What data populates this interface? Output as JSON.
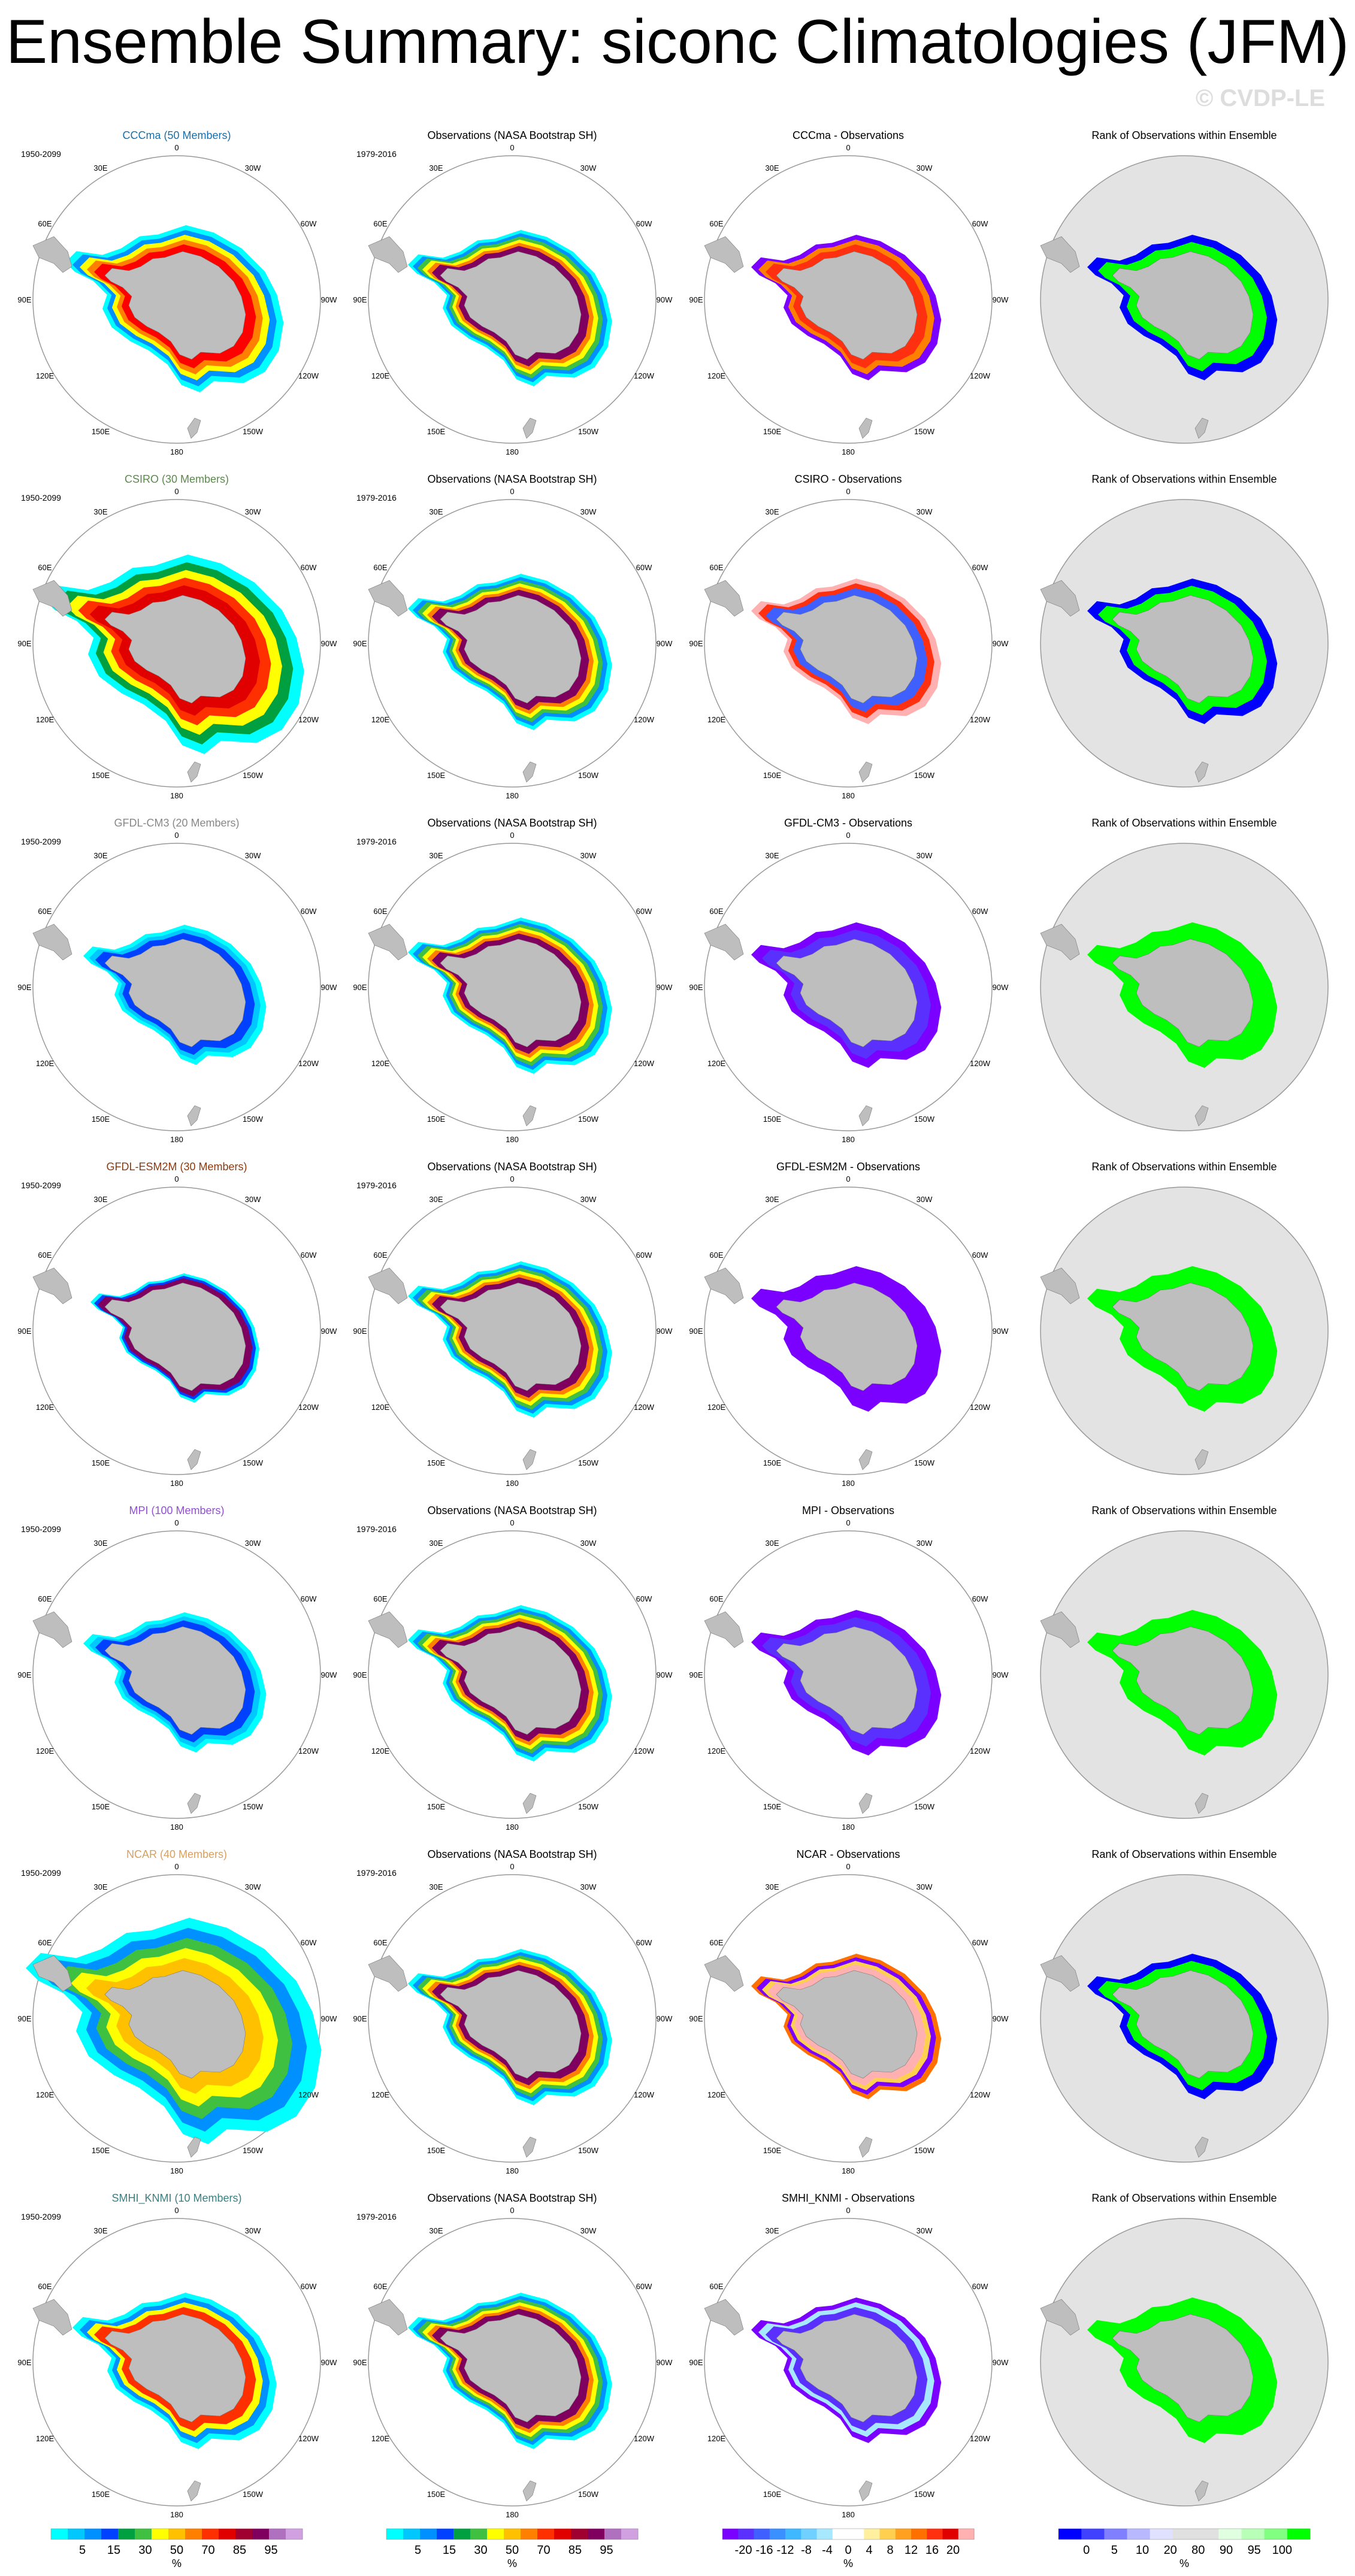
{
  "figure": {
    "title": "Ensemble Summary: siconc Climatologies (JFM)",
    "watermark": "© CVDP-LE"
  },
  "colors": {
    "ocean": "#ffffff",
    "land": "#bebebe",
    "rank_background": "#e3e3e3",
    "circle": "#999999",
    "model_label_colors": [
      "#1a6fa8",
      "#5a8a4a",
      "#888888",
      "#8b3a0f",
      "#9050d0",
      "#d8a060",
      "#3a8080"
    ]
  },
  "chart_data": {
    "type": "heatmap",
    "description_map": "polar stereographic, Southern Hemisphere",
    "rows": [
      {
        "model_label": "CCCma (50 Members)",
        "model_period": "1950-2099",
        "obs_title": "Observations (NASA Bootstrap SH)",
        "obs_period": "1979-2016",
        "diff_title": "CCCma - Observations",
        "rank_title": "Rank of Observations within Ensemble"
      },
      {
        "model_label": "CSIRO (30 Members)",
        "model_period": "1950-2099",
        "obs_title": "Observations (NASA Bootstrap SH)",
        "obs_period": "1979-2016",
        "diff_title": "CSIRO - Observations",
        "rank_title": "Rank of Observations within Ensemble"
      },
      {
        "model_label": "GFDL-CM3 (20 Members)",
        "model_period": "1950-2099",
        "obs_title": "Observations (NASA Bootstrap SH)",
        "obs_period": "1979-2016",
        "diff_title": "GFDL-CM3 - Observations",
        "rank_title": "Rank of Observations within Ensemble"
      },
      {
        "model_label": "GFDL-ESM2M (30 Members)",
        "model_period": "1950-2099",
        "obs_title": "Observations (NASA Bootstrap SH)",
        "obs_period": "1979-2016",
        "diff_title": "GFDL-ESM2M - Observations",
        "rank_title": "Rank of Observations within Ensemble"
      },
      {
        "model_label": "MPI (100 Members)",
        "model_period": "1950-2099",
        "obs_title": "Observations (NASA Bootstrap SH)",
        "obs_period": "1979-2016",
        "diff_title": "MPI - Observations",
        "rank_title": "Rank of Observations within Ensemble"
      },
      {
        "model_label": "NCAR (40 Members)",
        "model_period": "1950-2099",
        "obs_title": "Observations (NASA Bootstrap SH)",
        "obs_period": "1979-2016",
        "diff_title": "NCAR - Observations",
        "rank_title": "Rank of Observations within Ensemble"
      },
      {
        "model_label": "SMHI_KNMI (10 Members)",
        "model_period": "1950-2099",
        "obs_title": "Observations (NASA Bootstrap SH)",
        "obs_period": "1979-2016",
        "diff_title": "SMHI_KNMI - Observations",
        "rank_title": "Rank of Observations within Ensemble"
      }
    ],
    "longitude_labels": [
      "0",
      "30E",
      "60E",
      "90E",
      "120E",
      "150E",
      "180",
      "150W",
      "120W",
      "90W",
      "60W",
      "30W"
    ],
    "colorbars": [
      {
        "unit": "%",
        "colors": [
          "#00ffff",
          "#00c8ff",
          "#0090ff",
          "#0040ff",
          "#00a040",
          "#40c040",
          "#ffff00",
          "#ffc000",
          "#ff8000",
          "#ff3000",
          "#e00000",
          "#a00030",
          "#800060",
          "#b070c0",
          "#d0a0e0"
        ],
        "tick_labels": [
          "5",
          "15",
          "30",
          "50",
          "70",
          "85",
          "95"
        ]
      },
      {
        "unit": "%",
        "colors": [
          "#00ffff",
          "#00c8ff",
          "#0090ff",
          "#0040ff",
          "#00a040",
          "#40c040",
          "#ffff00",
          "#ffc000",
          "#ff8000",
          "#ff3000",
          "#e00000",
          "#a00030",
          "#800060",
          "#b070c0",
          "#d0a0e0"
        ],
        "tick_labels": [
          "5",
          "15",
          "30",
          "50",
          "70",
          "85",
          "95"
        ]
      },
      {
        "unit": "%",
        "colors": [
          "#7a00ff",
          "#5a30ff",
          "#3f5fff",
          "#3a90ff",
          "#40b8ff",
          "#70d0ff",
          "#a8e8ff",
          "#ffffff",
          "#ffffff",
          "#fff0a0",
          "#ffd050",
          "#ffa020",
          "#ff7000",
          "#ff3010",
          "#e00000",
          "#ffb0b0"
        ],
        "tick_labels": [
          "-20",
          "-16",
          "-12",
          "-8",
          "-4",
          "0",
          "4",
          "8",
          "12",
          "16",
          "20"
        ]
      },
      {
        "unit": "%",
        "colors": [
          "#0000ff",
          "#4040ff",
          "#8080ff",
          "#b8b8ff",
          "#e0e0ff",
          "#e0e0e0",
          "#e0e0e0",
          "#e0ffe0",
          "#b8ffb8",
          "#80ff80",
          "#00ff00"
        ],
        "tick_labels": [
          "0",
          "5",
          "10",
          "20",
          "80",
          "90",
          "95",
          "100"
        ]
      }
    ]
  }
}
